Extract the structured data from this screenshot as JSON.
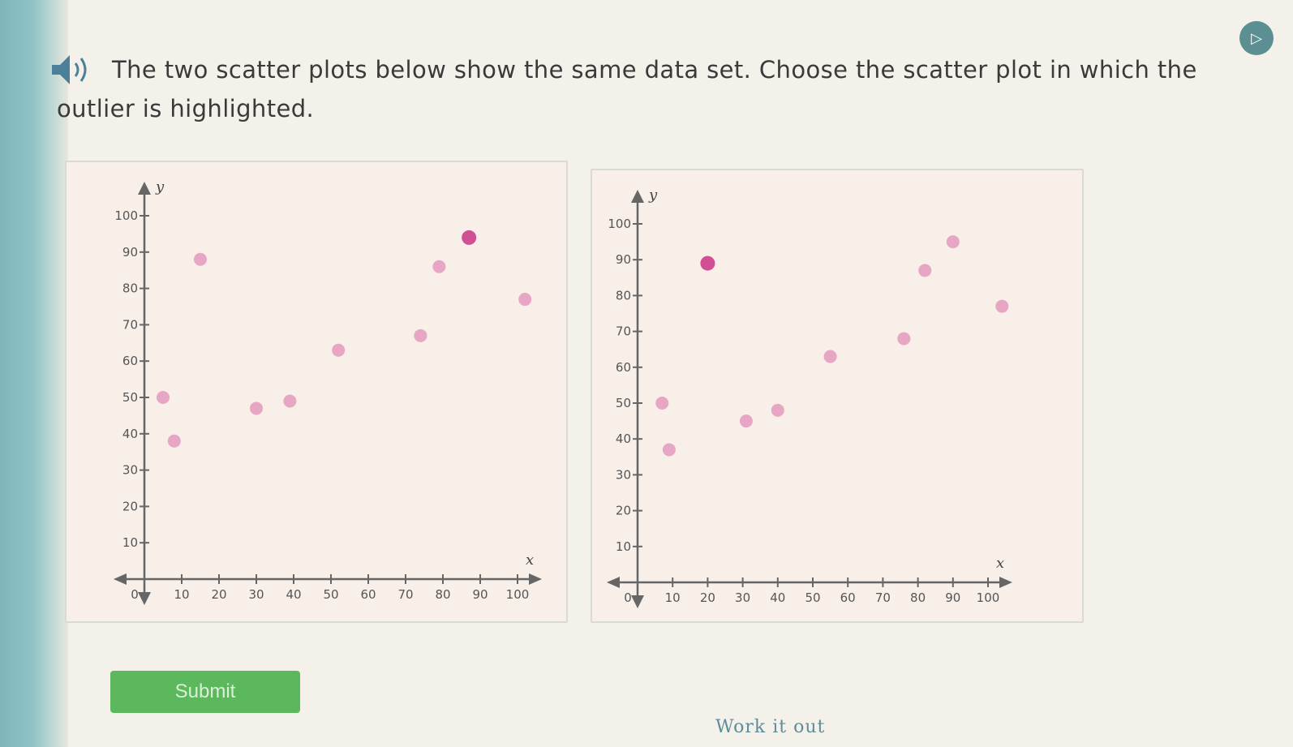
{
  "question": {
    "text": "The two scatter plots below show the same data set. Choose the scatter plot in which the outlier is highlighted."
  },
  "icons": {
    "speaker": "speaker-icon",
    "corner": "play-icon"
  },
  "submit": {
    "label": "Submit"
  },
  "work_link": {
    "label": "Work it out"
  },
  "colors": {
    "point": "#e6a6c4",
    "highlight": "#d14f93",
    "axis": "#666666",
    "submit": "#5cb85c"
  },
  "chart_data": [
    {
      "type": "scatter",
      "xlabel": "x",
      "ylabel": "y",
      "xlim": [
        0,
        100
      ],
      "ylim": [
        0,
        100
      ],
      "x_ticks": [
        "0",
        "10",
        "20",
        "30",
        "40",
        "50",
        "60",
        "70",
        "80",
        "90",
        "100"
      ],
      "y_ticks": [
        "10",
        "20",
        "30",
        "40",
        "50",
        "60",
        "70",
        "80",
        "90",
        "100"
      ],
      "points": [
        {
          "x": 5,
          "y": 50,
          "highlight": false
        },
        {
          "x": 8,
          "y": 38,
          "highlight": false
        },
        {
          "x": 15,
          "y": 88,
          "highlight": false
        },
        {
          "x": 30,
          "y": 47,
          "highlight": false
        },
        {
          "x": 39,
          "y": 49,
          "highlight": false
        },
        {
          "x": 52,
          "y": 63,
          "highlight": false
        },
        {
          "x": 74,
          "y": 67,
          "highlight": false
        },
        {
          "x": 79,
          "y": 86,
          "highlight": false
        },
        {
          "x": 87,
          "y": 94,
          "highlight": true
        },
        {
          "x": 102,
          "y": 77,
          "highlight": false
        }
      ]
    },
    {
      "type": "scatter",
      "xlabel": "x",
      "ylabel": "y",
      "xlim": [
        0,
        100
      ],
      "ylim": [
        0,
        100
      ],
      "x_ticks": [
        "0",
        "10",
        "20",
        "30",
        "40",
        "50",
        "60",
        "70",
        "80",
        "90",
        "100"
      ],
      "y_ticks": [
        "10",
        "20",
        "30",
        "40",
        "50",
        "60",
        "70",
        "80",
        "90",
        "100"
      ],
      "points": [
        {
          "x": 7,
          "y": 50,
          "highlight": false
        },
        {
          "x": 9,
          "y": 37,
          "highlight": false
        },
        {
          "x": 20,
          "y": 89,
          "highlight": true
        },
        {
          "x": 31,
          "y": 45,
          "highlight": false
        },
        {
          "x": 40,
          "y": 48,
          "highlight": false
        },
        {
          "x": 55,
          "y": 63,
          "highlight": false
        },
        {
          "x": 76,
          "y": 68,
          "highlight": false
        },
        {
          "x": 82,
          "y": 87,
          "highlight": false
        },
        {
          "x": 90,
          "y": 95,
          "highlight": false
        },
        {
          "x": 104,
          "y": 77,
          "highlight": false
        }
      ]
    }
  ]
}
